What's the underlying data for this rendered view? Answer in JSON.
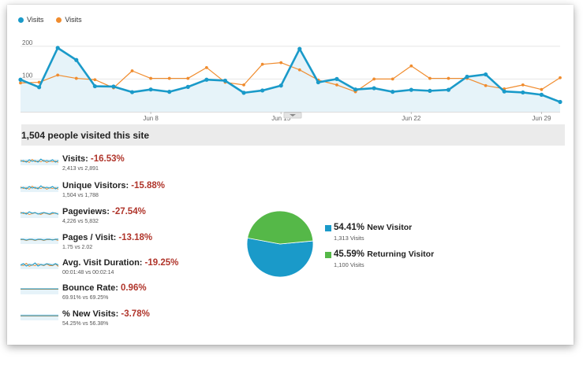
{
  "chart_legend": {
    "series_1": "Visits",
    "series_2": "Visits"
  },
  "colors": {
    "series_1": "#1a9ac9",
    "series_2": "#f08c2e",
    "new": "#1a9ac9",
    "returning": "#55b848",
    "negative": "#b0352b"
  },
  "chart_data": [
    {
      "type": "line",
      "ylim": [
        0,
        250
      ],
      "yticks": [
        "200",
        "100"
      ],
      "xtick_labels": [
        "Jun 8",
        "Jun 15",
        "Jun 22",
        "Jun 29"
      ],
      "x": [
        "Jun 1",
        "Jun 2",
        "Jun 3",
        "Jun 4",
        "Jun 5",
        "Jun 6",
        "Jun 7",
        "Jun 8",
        "Jun 9",
        "Jun 10",
        "Jun 11",
        "Jun 12",
        "Jun 13",
        "Jun 14",
        "Jun 15",
        "Jun 16",
        "Jun 17",
        "Jun 18",
        "Jun 19",
        "Jun 20",
        "Jun 21",
        "Jun 22",
        "Jun 23",
        "Jun 24",
        "Jun 25",
        "Jun 26",
        "Jun 27",
        "Jun 28",
        "Jun 29",
        "Jun 30"
      ],
      "series": [
        {
          "name": "Visits",
          "values": [
            98,
            75,
            195,
            158,
            78,
            77,
            60,
            68,
            61,
            76,
            98,
            95,
            58,
            65,
            80,
            192,
            90,
            100,
            68,
            72,
            61,
            67,
            64,
            67,
            107,
            114,
            62,
            59,
            52,
            30
          ]
        },
        {
          "name": "Visits",
          "values": [
            88,
            90,
            112,
            102,
            98,
            73,
            125,
            102,
            102,
            102,
            135,
            90,
            82,
            145,
            150,
            128,
            97,
            82,
            61,
            100,
            100,
            140,
            102,
            102,
            102,
            80,
            70,
            82,
            68,
            104
          ]
        }
      ]
    },
    {
      "type": "pie",
      "values": [
        54.41,
        45.59
      ],
      "categories": [
        "New Visitor",
        "Returning Visitor"
      ]
    }
  ],
  "summary_title": "1,504 people visited this site",
  "metrics": [
    {
      "label": "Visits:",
      "change": "-16.53%",
      "compare": "2,413 vs 2,891"
    },
    {
      "label": "Unique Visitors:",
      "change": "-15.88%",
      "compare": "1,504 vs 1,788"
    },
    {
      "label": "Pageviews:",
      "change": "-27.54%",
      "compare": "4,226 vs 5,832"
    },
    {
      "label": "Pages / Visit:",
      "change": "-13.18%",
      "compare": "1.75 vs 2.02"
    },
    {
      "label": "Avg. Visit Duration:",
      "change": "-19.25%",
      "compare": "00:01:48 vs 00:02:14"
    },
    {
      "label": "Bounce Rate:",
      "change": "0.96%",
      "compare": "69.91% vs 69.25%"
    },
    {
      "label": "% New Visits:",
      "change": "-3.78%",
      "compare": "54.25% vs 56.38%"
    }
  ],
  "visitor_breakdown": [
    {
      "percent": "54.41%",
      "label": "New Visitor",
      "count": "1,313 Visits"
    },
    {
      "percent": "45.59%",
      "label": "Returning Visitor",
      "count": "1,100 Visits"
    }
  ]
}
